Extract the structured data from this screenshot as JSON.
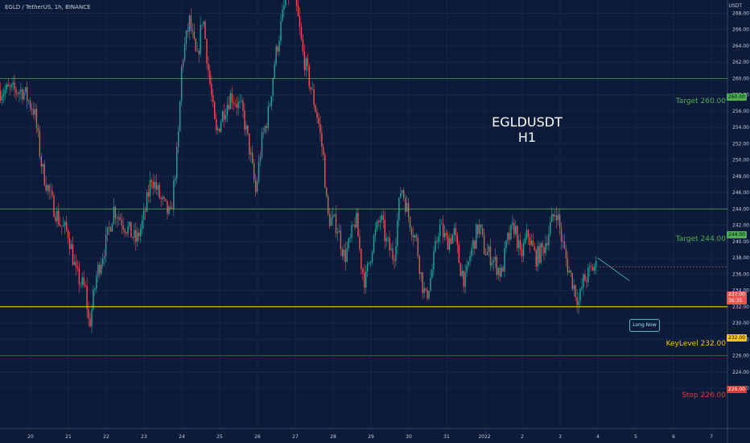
{
  "header": {
    "symbol_line": "EGLD / TetherUS, 1h, BINANCE",
    "currency": "USDT"
  },
  "overlay": {
    "title": "EGLDUSDT",
    "subtitle": "H1",
    "note": "Long Now"
  },
  "levels": [
    {
      "label": "Target 260.00",
      "price": 260.0,
      "color": "#4caf50"
    },
    {
      "label": "Target 244.00",
      "price": 244.0,
      "color": "#4caf50"
    },
    {
      "label": "KeyLevel 232.00",
      "price": 232.0,
      "color": "#f5c518"
    },
    {
      "label": "Stop 226.00",
      "price": 226.0,
      "color": "#e53935"
    }
  ],
  "price_tags": [
    "260.00",
    "244.00",
    "232.00",
    "226.00"
  ],
  "last_price": {
    "value": "237.00",
    "countdown": "36:35",
    "price": 236.9
  },
  "colors": {
    "up": "#26a69a",
    "down": "#ef5350",
    "background": "#0c1b3a",
    "text": "#c7cbd6"
  },
  "chart_data": {
    "type": "candlestick",
    "xlabel": "",
    "ylabel": "",
    "ylim": [
      221,
      272
    ],
    "y_ticks": [
      222,
      224,
      226,
      228,
      230,
      232,
      234,
      236,
      238,
      240,
      242,
      244,
      246,
      248,
      250,
      252,
      254,
      256,
      258,
      260,
      262,
      264,
      266,
      268
    ],
    "x_ticks": [
      "20",
      "21",
      "22",
      "23",
      "24",
      "25",
      "26",
      "27",
      "28",
      "29",
      "30",
      "31",
      "2022",
      "2",
      "3",
      "4",
      "5",
      "6",
      "7"
    ],
    "anchors": [
      [
        -0.2,
        258.5
      ],
      [
        0.1,
        256
      ],
      [
        0.3,
        249
      ],
      [
        0.55,
        245
      ],
      [
        0.8,
        242
      ],
      [
        1.0,
        241
      ],
      [
        1.2,
        236
      ],
      [
        1.45,
        234
      ],
      [
        1.55,
        229.5
      ],
      [
        1.75,
        236
      ],
      [
        2.0,
        240
      ],
      [
        2.2,
        244
      ],
      [
        2.5,
        242
      ],
      [
        2.8,
        240
      ],
      [
        3.0,
        243
      ],
      [
        3.2,
        248
      ],
      [
        3.45,
        245
      ],
      [
        3.7,
        243
      ],
      [
        3.9,
        252
      ],
      [
        4.0,
        262
      ],
      [
        4.2,
        267
      ],
      [
        4.4,
        262
      ],
      [
        4.55,
        268
      ],
      [
        4.7,
        261
      ],
      [
        4.9,
        253
      ],
      [
        5.1,
        256
      ],
      [
        5.3,
        258
      ],
      [
        5.6,
        256
      ],
      [
        5.8,
        251
      ],
      [
        5.95,
        246
      ],
      [
        6.1,
        252
      ],
      [
        6.3,
        256
      ],
      [
        6.45,
        262
      ],
      [
        6.6,
        266
      ],
      [
        6.75,
        270
      ],
      [
        6.9,
        271
      ],
      [
        7.05,
        268
      ],
      [
        7.2,
        263
      ],
      [
        7.4,
        259
      ],
      [
        7.6,
        255
      ],
      [
        7.75,
        250
      ],
      [
        7.85,
        243
      ],
      [
        8.1,
        242
      ],
      [
        8.3,
        238
      ],
      [
        8.45,
        240
      ],
      [
        8.6,
        243
      ],
      [
        8.75,
        237
      ],
      [
        8.85,
        235
      ],
      [
        9.05,
        240
      ],
      [
        9.25,
        243
      ],
      [
        9.4,
        240
      ],
      [
        9.6,
        238
      ],
      [
        9.8,
        247
      ],
      [
        10.0,
        243
      ],
      [
        10.2,
        240
      ],
      [
        10.35,
        235
      ],
      [
        10.45,
        233
      ],
      [
        10.6,
        236
      ],
      [
        10.8,
        242
      ],
      [
        11.0,
        240
      ],
      [
        11.2,
        241
      ],
      [
        11.35,
        237
      ],
      [
        11.5,
        235
      ],
      [
        11.6,
        238
      ],
      [
        11.85,
        242
      ],
      [
        12.0,
        239
      ],
      [
        12.2,
        238
      ],
      [
        12.45,
        236
      ],
      [
        12.6,
        240
      ],
      [
        12.8,
        242
      ],
      [
        12.95,
        238
      ],
      [
        13.15,
        241
      ],
      [
        13.35,
        238
      ],
      [
        13.55,
        239
      ],
      [
        13.75,
        242
      ],
      [
        13.9,
        244
      ],
      [
        14.05,
        240
      ],
      [
        14.2,
        237
      ],
      [
        14.4,
        234
      ],
      [
        14.5,
        232.5
      ],
      [
        14.6,
        235
      ],
      [
        14.75,
        236
      ],
      [
        14.9,
        237
      ],
      [
        14.95,
        236.9
      ]
    ]
  }
}
